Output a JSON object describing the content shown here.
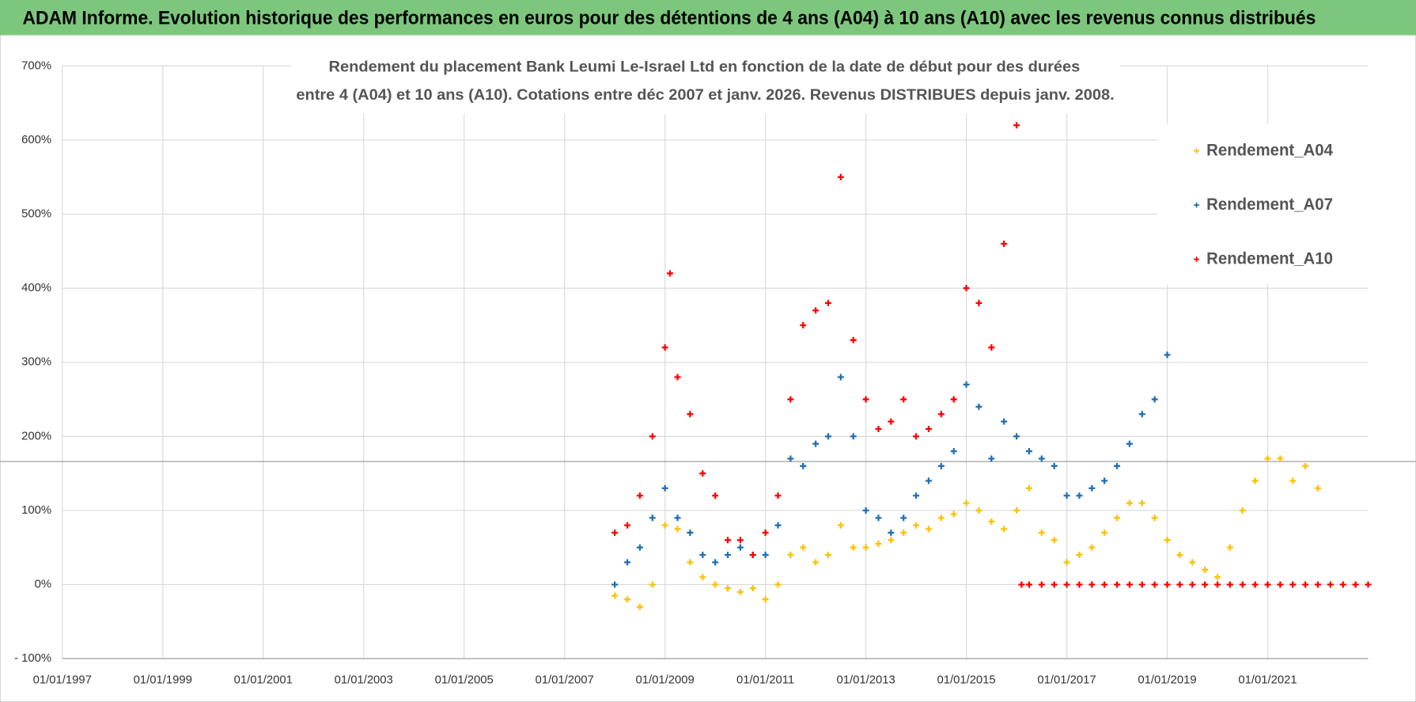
{
  "header": {
    "title": "ADAM Informe. Evolution historique des performances en euros pour des détentions de 4 ans (A04) à 10 ans (A10) avec les revenus connus distribués"
  },
  "chart_data": {
    "type": "scatter",
    "title": [
      "Rendement du placement Bank Leumi Le-Israel Ltd en fonction de la date de début pour des durées",
      "entre 4 (A04) et 10 ans (A10).  Cotations entre déc 2007 et janv. 2026.  Revenus DISTRIBUES depuis janv. 2008."
    ],
    "xlim": [
      1997,
      2023
    ],
    "xticks": [
      {
        "value": 1997,
        "label": "01/01/1997"
      },
      {
        "value": 1999,
        "label": "01/01/1999"
      },
      {
        "value": 2001,
        "label": "01/01/2001"
      },
      {
        "value": 2003,
        "label": "01/01/2003"
      },
      {
        "value": 2005,
        "label": "01/01/2005"
      },
      {
        "value": 2007,
        "label": "01/01/2007"
      },
      {
        "value": 2009,
        "label": "01/01/2009"
      },
      {
        "value": 2011,
        "label": "01/01/2011"
      },
      {
        "value": 2013,
        "label": "01/01/2013"
      },
      {
        "value": 2015,
        "label": "01/01/2015"
      },
      {
        "value": 2017,
        "label": "01/01/2017"
      },
      {
        "value": 2019,
        "label": "01/01/2019"
      },
      {
        "value": 2021,
        "label": "01/01/2021"
      }
    ],
    "ylim": [
      -100,
      700
    ],
    "yticks": [
      {
        "value": -100,
        "label": "- 100%"
      },
      {
        "value": 0,
        "label": "0%"
      },
      {
        "value": 100,
        "label": "100%"
      },
      {
        "value": 200,
        "label": "200%"
      },
      {
        "value": 300,
        "label": "300%"
      },
      {
        "value": 400,
        "label": "400%"
      },
      {
        "value": 500,
        "label": "500%"
      },
      {
        "value": 600,
        "label": "600%"
      },
      {
        "value": 700,
        "label": "700%"
      }
    ],
    "grid": true,
    "reference_line": 166,
    "legend": "top-right",
    "series": [
      {
        "name": "Rendement_A04",
        "color": "#ffc000",
        "x": [
          2008.0,
          2008.25,
          2008.5,
          2008.75,
          2009.0,
          2009.25,
          2009.5,
          2009.75,
          2010.0,
          2010.25,
          2010.5,
          2010.75,
          2011.0,
          2011.25,
          2011.5,
          2011.75,
          2012.0,
          2012.25,
          2012.5,
          2012.75,
          2013.0,
          2013.25,
          2013.5,
          2013.75,
          2014.0,
          2014.25,
          2014.5,
          2014.75,
          2015.0,
          2015.25,
          2015.5,
          2015.75,
          2016.0,
          2016.25,
          2016.5,
          2016.75,
          2017.0,
          2017.25,
          2017.5,
          2017.75,
          2018.0,
          2018.25,
          2018.5,
          2018.75,
          2019.0,
          2019.25,
          2019.5,
          2019.75,
          2020.0,
          2020.25,
          2020.5,
          2020.75,
          2021.0,
          2021.25,
          2021.5,
          2021.75,
          2022.0
        ],
        "values": [
          -15,
          -20,
          -30,
          0,
          80,
          75,
          30,
          10,
          0,
          -5,
          -10,
          -5,
          -20,
          0,
          40,
          50,
          30,
          40,
          80,
          50,
          50,
          55,
          60,
          70,
          80,
          75,
          90,
          95,
          110,
          100,
          85,
          75,
          100,
          130,
          70,
          60,
          30,
          40,
          50,
          70,
          90,
          110,
          110,
          90,
          60,
          40,
          30,
          20,
          10,
          50,
          100,
          140,
          170,
          170,
          140,
          160,
          130
        ]
      },
      {
        "name": "Rendement_A07",
        "color": "#1f6fb4",
        "x": [
          2008.0,
          2008.25,
          2008.5,
          2008.75,
          2009.0,
          2009.25,
          2009.5,
          2009.75,
          2010.0,
          2010.25,
          2010.5,
          2010.75,
          2011.0,
          2011.25,
          2011.5,
          2011.75,
          2012.0,
          2012.25,
          2012.5,
          2012.75,
          2013.0,
          2013.25,
          2013.5,
          2013.75,
          2014.0,
          2014.25,
          2014.5,
          2014.75,
          2015.0,
          2015.25,
          2015.5,
          2015.75,
          2016.0,
          2016.25,
          2016.5,
          2016.75,
          2017.0,
          2017.25,
          2017.5,
          2017.75,
          2018.0,
          2018.25,
          2018.5,
          2018.75,
          2019.0
        ],
        "values": [
          0,
          30,
          50,
          90,
          130,
          90,
          70,
          40,
          30,
          40,
          50,
          40,
          40,
          80,
          170,
          160,
          190,
          200,
          280,
          200,
          100,
          90,
          70,
          90,
          120,
          140,
          160,
          180,
          270,
          240,
          170,
          220,
          200,
          180,
          170,
          160,
          120,
          120,
          130,
          140,
          160,
          190,
          230,
          250,
          310
        ]
      },
      {
        "name": "Rendement_A10",
        "color": "#ff0000",
        "x": [
          2008.0,
          2008.25,
          2008.5,
          2008.75,
          2009.0,
          2009.1,
          2009.25,
          2009.5,
          2009.75,
          2010.0,
          2010.25,
          2010.5,
          2010.75,
          2011.0,
          2011.25,
          2011.5,
          2011.75,
          2012.0,
          2012.25,
          2012.5,
          2012.75,
          2013.0,
          2013.25,
          2013.5,
          2013.75,
          2014.0,
          2014.25,
          2014.5,
          2014.75,
          2015.0,
          2015.25,
          2015.5,
          2015.75,
          2016.0,
          2016.1,
          2016.25,
          2016.5,
          2016.75,
          2017.0,
          2017.25,
          2017.5,
          2017.75,
          2018.0,
          2018.25,
          2018.5,
          2018.75,
          2019.0,
          2019.25,
          2019.5,
          2019.75,
          2020.0,
          2020.25,
          2020.5,
          2020.75,
          2021.0,
          2021.25,
          2021.5,
          2021.75,
          2022.0,
          2022.25,
          2022.5,
          2022.75,
          2023.0
        ],
        "values": [
          70,
          80,
          120,
          200,
          320,
          420,
          280,
          230,
          150,
          120,
          60,
          60,
          40,
          70,
          120,
          250,
          350,
          370,
          380,
          550,
          330,
          250,
          210,
          220,
          250,
          200,
          210,
          230,
          250,
          400,
          380,
          320,
          460,
          620,
          0,
          0,
          0,
          0,
          0,
          0,
          0,
          0,
          0,
          0,
          0,
          0,
          0,
          0,
          0,
          0,
          0,
          0,
          0,
          0,
          0,
          0,
          0,
          0,
          0,
          0,
          0,
          0,
          0
        ]
      }
    ]
  }
}
